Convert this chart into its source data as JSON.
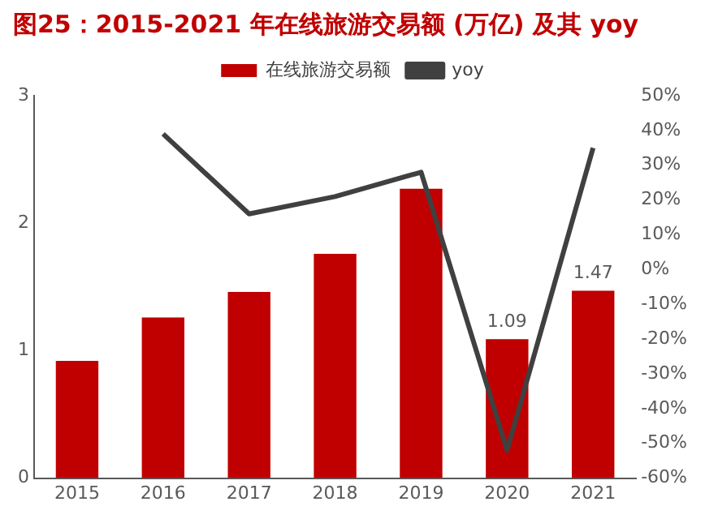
{
  "chart_data": {
    "type": "bar",
    "title": "图25：2015-2021 年在线旅游交易额 (万亿) 及其 yoy",
    "categories": [
      "2015",
      "2016",
      "2017",
      "2018",
      "2019",
      "2020",
      "2021"
    ],
    "series": [
      {
        "name": "在线旅游交易额",
        "color": "#c00000",
        "values": [
          0.92,
          1.26,
          1.46,
          1.76,
          2.27,
          1.09,
          1.47
        ],
        "value_labels": [
          null,
          null,
          null,
          null,
          null,
          "1.09",
          "1.47"
        ]
      },
      {
        "name": "yoy",
        "type": "line",
        "axis": "y2",
        "color": "#404040",
        "values": [
          null,
          39,
          16,
          21,
          28,
          -52,
          35
        ]
      }
    ],
    "ylim": [
      0,
      3
    ],
    "yticks": [
      0,
      1,
      2,
      3
    ],
    "y2lim": [
      -60,
      50
    ],
    "y2ticks": [
      {
        "value": 50,
        "label": "50%"
      },
      {
        "value": 40,
        "label": "40%"
      },
      {
        "value": 30,
        "label": "30%"
      },
      {
        "value": 20,
        "label": "20%"
      },
      {
        "value": 10,
        "label": "10%"
      },
      {
        "value": 0,
        "label": "0%"
      },
      {
        "value": -10,
        "label": "-10%"
      },
      {
        "value": -20,
        "label": "-20%"
      },
      {
        "value": -30,
        "label": "-30%"
      },
      {
        "value": -40,
        "label": "-40%"
      },
      {
        "value": -50,
        "label": "-50%"
      },
      {
        "value": -60,
        "label": "-60%"
      }
    ],
    "grid": false,
    "legend": "top",
    "marker": "none",
    "line_style": "solid"
  }
}
